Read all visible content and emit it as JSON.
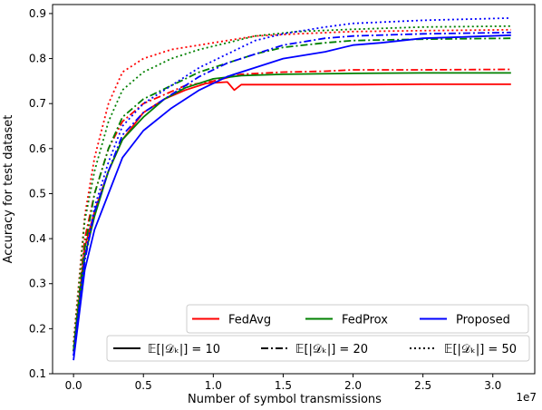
{
  "chart_data": {
    "type": "line",
    "xlabel": "Number of symbol transmissions",
    "ylabel": "Accuracy for test dataset",
    "x_scale_label": "1e7",
    "xlim": [
      -0.15,
      3.3
    ],
    "ylim": [
      0.1,
      0.92
    ],
    "xticks": [
      0.0,
      0.5,
      1.0,
      1.5,
      2.0,
      2.5,
      3.0
    ],
    "xtick_labels": [
      "0.0",
      "0.5",
      "1.0",
      "1.5",
      "2.0",
      "2.5",
      "3.0"
    ],
    "yticks": [
      0.1,
      0.2,
      0.3,
      0.4,
      0.5,
      0.6,
      0.7,
      0.8,
      0.9
    ],
    "ytick_labels": [
      "0.1",
      "0.2",
      "0.3",
      "0.4",
      "0.5",
      "0.6",
      "0.7",
      "0.8",
      "0.9"
    ],
    "grid": false,
    "legend_methods": [
      {
        "label": "FedAvg",
        "color": "#ff0000"
      },
      {
        "label": "FedProx",
        "color": "#008000"
      },
      {
        "label": "Proposed",
        "color": "#0000ff"
      }
    ],
    "legend_styles": [
      {
        "label": "𝔼[|𝒟ₖ|] = 10",
        "style": "solid"
      },
      {
        "label": "𝔼[|𝒟ₖ|] = 20",
        "style": "dashdot"
      },
      {
        "label": "𝔼[|𝒟ₖ|] = 50",
        "style": "dotted"
      }
    ],
    "legend_position": "bottom-right",
    "series": [
      {
        "method": "FedAvg",
        "style": "solid",
        "color": "#ff0000",
        "x": [
          0.0,
          0.08,
          0.15,
          0.25,
          0.35,
          0.5,
          0.65,
          0.8,
          0.95,
          1.1,
          1.15,
          1.2,
          1.5,
          2.0,
          2.5,
          3.13
        ],
        "y": [
          0.15,
          0.38,
          0.46,
          0.55,
          0.62,
          0.68,
          0.71,
          0.73,
          0.745,
          0.748,
          0.73,
          0.742,
          0.742,
          0.742,
          0.743,
          0.743
        ]
      },
      {
        "method": "FedAvg",
        "style": "dashdot",
        "color": "#ff0000",
        "x": [
          0.0,
          0.08,
          0.15,
          0.25,
          0.35,
          0.5,
          0.65,
          0.8,
          1.0,
          1.2,
          1.5,
          1.8,
          2.0,
          2.5,
          3.13
        ],
        "y": [
          0.15,
          0.4,
          0.5,
          0.6,
          0.66,
          0.7,
          0.72,
          0.74,
          0.75,
          0.765,
          0.77,
          0.772,
          0.775,
          0.775,
          0.776
        ]
      },
      {
        "method": "FedAvg",
        "style": "dotted",
        "color": "#ff0000",
        "x": [
          0.0,
          0.08,
          0.15,
          0.25,
          0.35,
          0.5,
          0.7,
          0.9,
          1.1,
          1.3,
          1.6,
          2.0,
          2.5,
          3.13
        ],
        "y": [
          0.17,
          0.45,
          0.58,
          0.7,
          0.77,
          0.8,
          0.82,
          0.83,
          0.84,
          0.85,
          0.855,
          0.86,
          0.862,
          0.864
        ]
      },
      {
        "method": "FedProx",
        "style": "solid",
        "color": "#008000",
        "x": [
          0.0,
          0.08,
          0.15,
          0.25,
          0.35,
          0.5,
          0.65,
          0.8,
          1.0,
          1.2,
          1.5,
          2.0,
          2.5,
          3.13
        ],
        "y": [
          0.15,
          0.36,
          0.45,
          0.55,
          0.62,
          0.67,
          0.71,
          0.735,
          0.755,
          0.762,
          0.765,
          0.767,
          0.768,
          0.768
        ]
      },
      {
        "method": "FedProx",
        "style": "dashdot",
        "color": "#008000",
        "x": [
          0.0,
          0.08,
          0.15,
          0.25,
          0.35,
          0.5,
          0.7,
          0.9,
          1.1,
          1.3,
          1.5,
          1.8,
          2.0,
          2.5,
          3.13
        ],
        "y": [
          0.15,
          0.38,
          0.5,
          0.6,
          0.67,
          0.71,
          0.74,
          0.77,
          0.79,
          0.81,
          0.825,
          0.835,
          0.84,
          0.843,
          0.845
        ]
      },
      {
        "method": "FedProx",
        "style": "dotted",
        "color": "#008000",
        "x": [
          0.0,
          0.08,
          0.15,
          0.25,
          0.35,
          0.5,
          0.7,
          0.9,
          1.1,
          1.3,
          1.6,
          2.0,
          2.5,
          3.13
        ],
        "y": [
          0.16,
          0.44,
          0.55,
          0.66,
          0.73,
          0.77,
          0.8,
          0.82,
          0.835,
          0.85,
          0.86,
          0.865,
          0.87,
          0.872
        ]
      },
      {
        "method": "Proposed",
        "style": "solid",
        "color": "#0000ff",
        "x": [
          0.0,
          0.08,
          0.15,
          0.25,
          0.35,
          0.5,
          0.7,
          0.9,
          1.1,
          1.3,
          1.5,
          1.8,
          2.0,
          2.2,
          2.5,
          2.8,
          3.13
        ],
        "y": [
          0.13,
          0.33,
          0.42,
          0.5,
          0.58,
          0.64,
          0.69,
          0.73,
          0.76,
          0.78,
          0.8,
          0.815,
          0.83,
          0.835,
          0.845,
          0.848,
          0.852
        ]
      },
      {
        "method": "Proposed",
        "style": "dashdot",
        "color": "#0000ff",
        "x": [
          0.0,
          0.08,
          0.15,
          0.25,
          0.35,
          0.5,
          0.7,
          0.9,
          1.1,
          1.3,
          1.5,
          1.8,
          2.0,
          2.5,
          3.13
        ],
        "y": [
          0.14,
          0.35,
          0.46,
          0.55,
          0.63,
          0.68,
          0.72,
          0.76,
          0.79,
          0.81,
          0.83,
          0.845,
          0.85,
          0.855,
          0.858
        ]
      },
      {
        "method": "Proposed",
        "style": "dotted",
        "color": "#0000ff",
        "x": [
          0.0,
          0.08,
          0.15,
          0.25,
          0.35,
          0.5,
          0.7,
          0.9,
          1.1,
          1.3,
          1.5,
          1.8,
          2.0,
          2.5,
          3.13
        ],
        "y": [
          0.14,
          0.36,
          0.47,
          0.57,
          0.65,
          0.7,
          0.74,
          0.78,
          0.81,
          0.84,
          0.855,
          0.87,
          0.878,
          0.885,
          0.89
        ]
      }
    ]
  }
}
